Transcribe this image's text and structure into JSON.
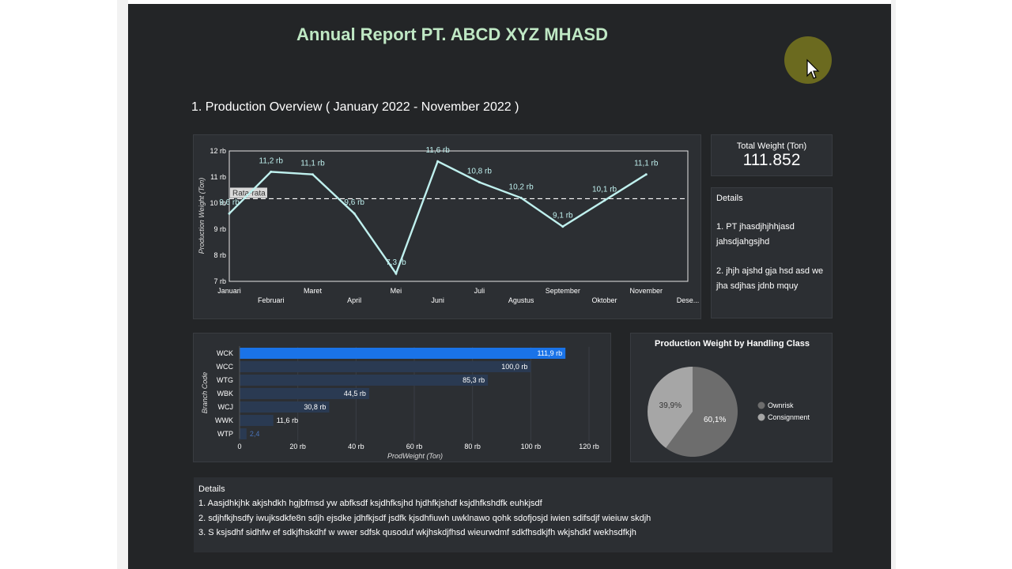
{
  "report": {
    "title": "Annual Report PT. ABCD XYZ MHASD",
    "section_title": "1. Production Overview  ( January 2022 - November 2022 )"
  },
  "kpi": {
    "label": "Total Weight (Ton)",
    "value": "111.852"
  },
  "side_details": {
    "title": "Details",
    "item1_l1": "1. PT  jhasdjhjhhjasd",
    "item1_l2": "jahsdjahgsjhd",
    "item2_l1": "2. jhjh ajshd gja hsd asd we",
    "item2_l2": "jha sdjhas jdnb mquy"
  },
  "bottom_details": {
    "title": "Details",
    "line1": "1. Aasjdhkjhk akjshdkh hgjbfmsd yw abfksdf ksjdhfksjhd hjdhfkjshdf ksjdhfkshdfk euhkjsdf",
    "line2": "2. sdjhfkjhsdfy iwujksdkfe8n sdjh ejsdke jdhfkjsdf jsdfk kjsdhfiuwh uwklnawo qohk sdofjosjd iwien sdifsdjf wieiuw skdjh",
    "line3": "3. S ksjsdhf sidhfw ef sdkjfhskdhf w wwer sdfsk qusoduf wkjhskdjfhsd wieurwdmf sdkfhsdkjfh wkjshdkf wekhsdfkjh"
  },
  "colors": {
    "line": "#bff0ee",
    "bar_top": "#1a73e8",
    "bar_other": "#2a3a52",
    "pie_ownrisk": "#6d6d6d",
    "pie_consign": "#a6a6a6"
  },
  "chart_data": [
    {
      "type": "line",
      "ylabel": "Production Weight (Ton)",
      "ylim": [
        7000,
        12000
      ],
      "y_ticks": [
        "7 rb",
        "8 rb",
        "9 rb",
        "10 rb",
        "11 rb",
        "12 rb"
      ],
      "categories": [
        "Januari",
        "Februari",
        "Maret",
        "April",
        "Mei",
        "Juni",
        "Juli",
        "Agustus",
        "September",
        "Oktober",
        "November",
        "Dese..."
      ],
      "values": [
        9600,
        11200,
        11100,
        9600,
        7300,
        11600,
        10800,
        10200,
        9100,
        10100,
        11100,
        null
      ],
      "data_labels": [
        "9,6 rb",
        "11,2 rb",
        "11,1 rb",
        "9,6 rb",
        "7,3 rb",
        "11,6 rb",
        "10,8 rb",
        "10,2 rb",
        "9,1 rb",
        "10,1 rb",
        "11,1 rb",
        ""
      ],
      "reference_line": {
        "label": "Rata-rata",
        "value": 10168
      },
      "grid": false
    },
    {
      "type": "bar",
      "orientation": "horizontal",
      "ylabel": "Branch Code",
      "xlabel": "ProdWeight (Ton)",
      "xlim": [
        0,
        120
      ],
      "x_ticks": [
        "0",
        "20 rb",
        "40 rb",
        "60 rb",
        "80 rb",
        "100 rb",
        "120 rb"
      ],
      "categories": [
        "WCK",
        "WCC",
        "WTG",
        "WBK",
        "WCJ",
        "WWK",
        "WTP"
      ],
      "values": [
        111.9,
        100.0,
        85.3,
        44.5,
        30.8,
        11.6,
        2.4
      ],
      "data_labels": [
        "111,9 rb",
        "100,0 rb",
        "85,3 rb",
        "44,5 rb",
        "30,8 rb",
        "11,6 rb",
        "2,4"
      ]
    },
    {
      "type": "pie",
      "title": "Production Weight by Handling Class",
      "slices": [
        {
          "label": "Ownrisk",
          "value": 60.1,
          "text": "60,1%"
        },
        {
          "label": "Consignment",
          "value": 39.9,
          "text": "39,9%"
        }
      ],
      "legend": "right"
    }
  ]
}
